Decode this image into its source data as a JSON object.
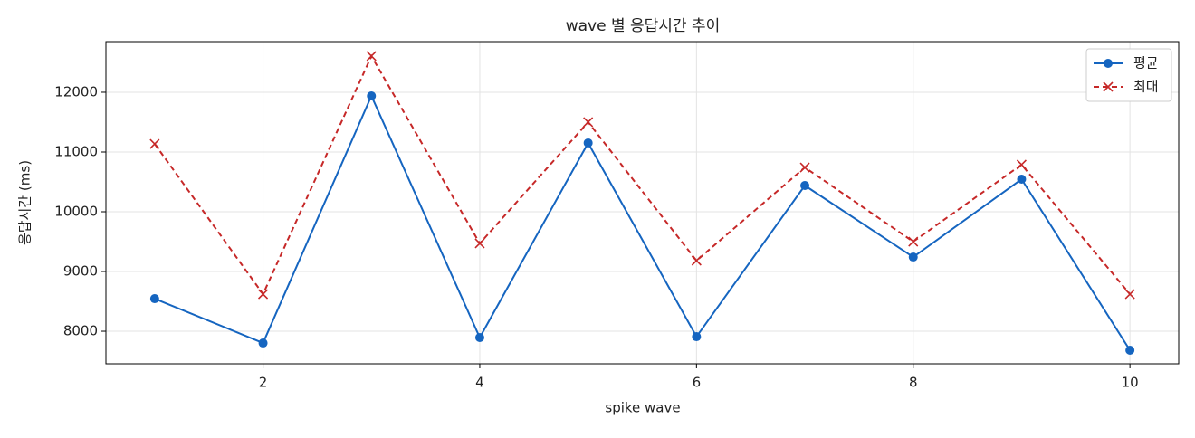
{
  "chart_data": {
    "type": "line",
    "title": "wave 별 응답시간 추이",
    "x_label": "spike wave",
    "y_label": "응답시간 (ms)",
    "x": [
      1,
      2,
      3,
      4,
      5,
      6,
      7,
      8,
      9,
      10
    ],
    "series": [
      {
        "name": "평균",
        "color": "#1565c0",
        "marker": "o",
        "dash": "solid",
        "values": [
          8545,
          7803,
          11939,
          7894,
          11152,
          7909,
          10439,
          9242,
          10545,
          7682
        ]
      },
      {
        "name": "최대",
        "color": "#c62828",
        "marker": "x",
        "dash": "dashed",
        "values": [
          11136,
          8621,
          12606,
          9470,
          11500,
          9182,
          10742,
          9500,
          10788,
          8621
        ]
      }
    ],
    "xlim": [
      0.55,
      10.45
    ],
    "xticks": [
      2,
      4,
      6,
      8,
      10
    ],
    "ylim": [
      7455,
      12848
    ],
    "yticks": [
      8000,
      9000,
      10000,
      11000,
      12000
    ],
    "grid": true,
    "legend": "upper right"
  }
}
